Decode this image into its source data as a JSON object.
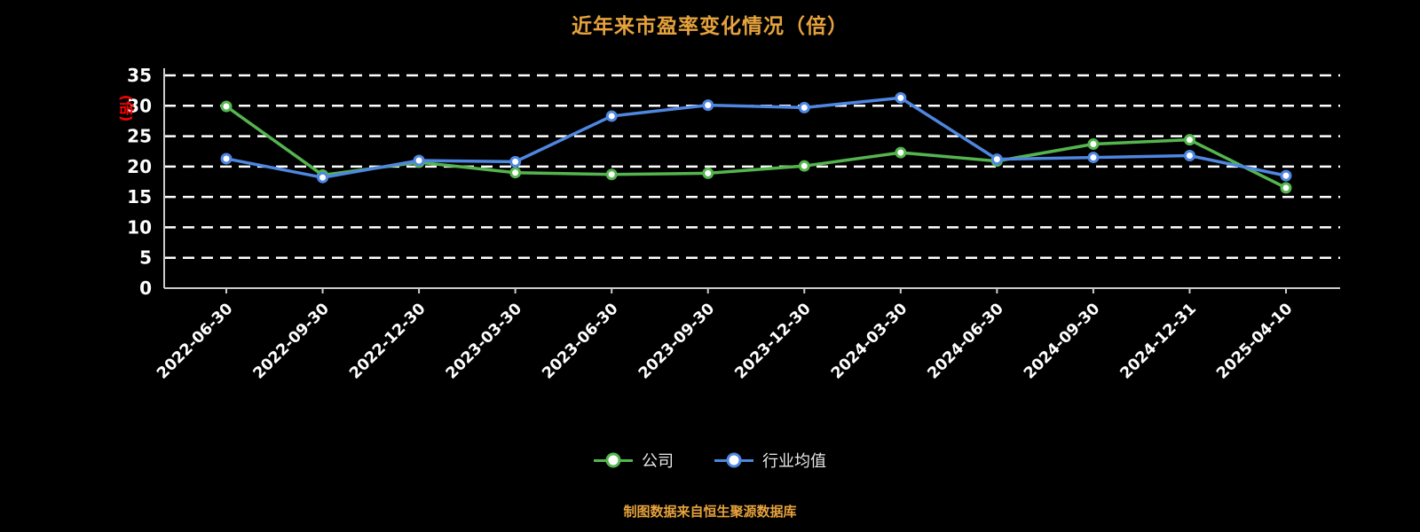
{
  "title": "近年来市盈率变化情况（倍）",
  "footer": "制图数据来自恒生聚源数据库",
  "colors": {
    "background": "#000000",
    "title": "#e6a23c",
    "footer": "#e6a23c",
    "axis": "#cccccc",
    "grid": "#ffffff",
    "tick_label": "#ffffff",
    "ylabel": "#ff0000",
    "series_company": "#54b54e",
    "series_industry": "#4e86e0"
  },
  "chart_data": {
    "type": "line",
    "title": "近年来市盈率变化情况（倍）",
    "xlabel": "",
    "ylabel": "(倍)",
    "ylim": [
      0,
      35
    ],
    "yticks": [
      0,
      5,
      10,
      15,
      20,
      25,
      30,
      35
    ],
    "grid": true,
    "grid_style": "dashed",
    "legend_position": "bottom",
    "marker": "circle",
    "categories": [
      "2022-06-30",
      "2022-09-30",
      "2022-12-30",
      "2023-03-30",
      "2023-06-30",
      "2023-09-30",
      "2023-12-30",
      "2024-03-30",
      "2024-06-30",
      "2024-09-30",
      "2024-12-31",
      "2025-04-10"
    ],
    "series": [
      {
        "name": "公司",
        "color": "#54b54e",
        "values": [
          29.9,
          18.6,
          20.7,
          19.0,
          18.7,
          18.9,
          20.1,
          22.3,
          20.9,
          23.7,
          24.4,
          16.5
        ]
      },
      {
        "name": "行业均值",
        "color": "#4e86e0",
        "values": [
          21.3,
          18.2,
          21.0,
          20.8,
          28.3,
          30.1,
          29.7,
          31.3,
          21.2,
          21.5,
          21.8,
          18.5
        ]
      }
    ]
  },
  "legend": {
    "items": [
      {
        "label": "公司",
        "color": "#54b54e"
      },
      {
        "label": "行业均值",
        "color": "#4e86e0"
      }
    ]
  }
}
